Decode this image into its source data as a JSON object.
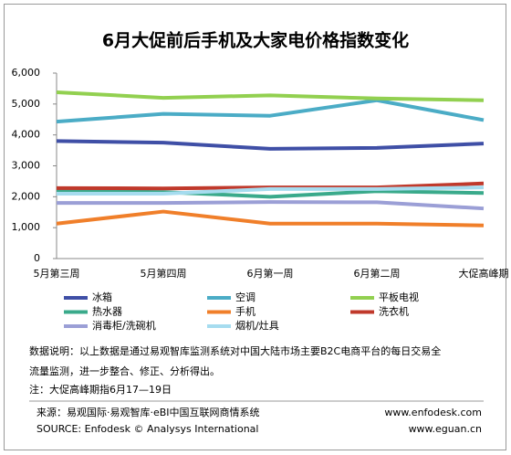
{
  "chart_data": {
    "type": "line",
    "title": "6月大促前后手机及大家电价格指数变化",
    "categories": [
      "5月第三周",
      "5月第四周",
      "6月第一周",
      "6月第二周",
      "大促高峰期"
    ],
    "ylim": [
      0,
      6000
    ],
    "yticks": [
      0,
      {
        "value": 1000,
        "label": "1,000"
      },
      {
        "value": 2000,
        "label": "2,000"
      },
      {
        "value": 3000,
        "label": "3,000"
      },
      {
        "value": 4000,
        "label": "4,000"
      },
      {
        "value": 5000,
        "label": "5,000"
      },
      {
        "value": 6000,
        "label": "6,000"
      }
    ],
    "legend": "bottom",
    "series": [
      {
        "name": "冰箱",
        "color": "#3f4fa6",
        "values": [
          3800,
          3750,
          3550,
          3580,
          3720
        ]
      },
      {
        "name": "空调",
        "color": "#4bacc6",
        "values": [
          4430,
          4680,
          4620,
          5120,
          4480
        ]
      },
      {
        "name": "平板电视",
        "color": "#92d050",
        "values": [
          5380,
          5200,
          5280,
          5180,
          5120
        ]
      },
      {
        "name": "热水器",
        "color": "#3aaa8b",
        "values": [
          2200,
          2150,
          2000,
          2180,
          2120
        ]
      },
      {
        "name": "手机",
        "color": "#f07f2a",
        "values": [
          1130,
          1520,
          1130,
          1130,
          1070
        ]
      },
      {
        "name": "洗衣机",
        "color": "#c0392b",
        "values": [
          2280,
          2270,
          2300,
          2300,
          2430
        ]
      },
      {
        "name": "消毒柜/洗碗机",
        "color": "#9b9fd6",
        "values": [
          1800,
          1800,
          1830,
          1820,
          1620
        ]
      },
      {
        "name": "烟机/灶具",
        "color": "#a6dcef",
        "values": [
          2100,
          2100,
          2250,
          2250,
          2300
        ]
      }
    ]
  },
  "notes": [
    "数据说明：以上数据是通过易观智库监测系统对中国大陆市场主要B2C电商平台的每日交易全",
    "流量监测，进一步整合、修正、分析得出。",
    "注：大促高峰期指6月17—19日"
  ],
  "footer": {
    "source_cn": "来源：易观国际·易观智库·eBI中国互联网商情系统",
    "url1": "www.enfodesk.com",
    "source_en": "SOURCE: Enfodesk © Analysys International",
    "url2": "www.eguan.cn"
  }
}
